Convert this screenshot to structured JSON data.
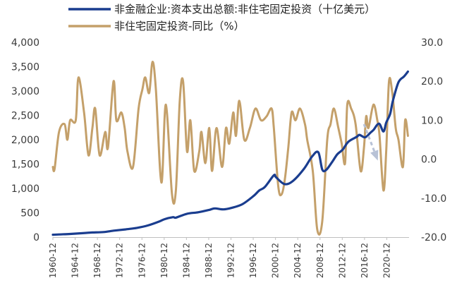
{
  "chart_data": {
    "type": "line",
    "title": "",
    "legend_position": "top-left",
    "grid": false,
    "colors": {
      "capex": "#1a3d8f",
      "yoy": "#c4a06a",
      "arrow": "#b8c2d6"
    },
    "x_ticks": [
      "1960-12",
      "1964-12",
      "1968-12",
      "1972-12",
      "1976-12",
      "1980-12",
      "1984-12",
      "1988-12",
      "1992-12",
      "1996-12",
      "2000-12",
      "2004-12",
      "2008-12",
      "2012-12",
      "2016-12",
      "2020-12"
    ],
    "y_left": {
      "ticks": [
        "0",
        "500",
        "1,000",
        "1,500",
        "2,000",
        "2,500",
        "3,000",
        "3,500",
        "4,000"
      ],
      "lim": [
        0,
        4000
      ]
    },
    "y_right": {
      "ticks": [
        "-20.0",
        "-10.0",
        "0.0",
        "10.0",
        "20.0",
        "30.0"
      ],
      "lim": [
        -20,
        30
      ]
    },
    "x_range": [
      1960.9,
      2024.9
    ],
    "series": [
      {
        "name": "非金融企业:资本支出总额:非住宅固定投资（十亿美元）",
        "axis": "left",
        "x": [
          1960.9,
          1962,
          1964,
          1966,
          1968,
          1970,
          1972,
          1974,
          1976,
          1978,
          1980,
          1981,
          1982.5,
          1983,
          1985,
          1987,
          1989,
          1990,
          1991.5,
          1993,
          1995,
          1997,
          1998,
          1999,
          2000.6,
          2001,
          2002.5,
          2004,
          2006,
          2007.5,
          2008.6,
          2009.3,
          2010,
          2011,
          2012,
          2013,
          2014,
          2015.5,
          2016,
          2017,
          2018,
          2018.5,
          2019.5,
          2020.3,
          2020.8,
          2021.5,
          2022,
          2023,
          2024,
          2024.7
        ],
        "values": [
          50,
          55,
          65,
          80,
          95,
          105,
          135,
          160,
          190,
          240,
          320,
          370,
          410,
          400,
          480,
          510,
          560,
          590,
          570,
          600,
          680,
          850,
          960,
          1030,
          1270,
          1230,
          1090,
          1150,
          1400,
          1660,
          1740,
          1390,
          1380,
          1530,
          1700,
          1800,
          1960,
          2060,
          2100,
          2050,
          2150,
          2200,
          2330,
          2170,
          2350,
          2530,
          2800,
          3180,
          3300,
          3400
        ]
      },
      {
        "name": "非住宅固定投资-同比（%）",
        "axis": "right",
        "x": [
          1960.9,
          1961.2,
          1962,
          1963,
          1963.5,
          1964,
          1965,
          1965.5,
          1966.5,
          1967.3,
          1968,
          1968.5,
          1969.3,
          1970.3,
          1970.8,
          1971.8,
          1972.3,
          1973.2,
          1973.8,
          1974.3,
          1975.3,
          1976.3,
          1977,
          1977.5,
          1978.2,
          1978.8,
          1979.4,
          1980.4,
          1981.2,
          1982.3,
          1983,
          1983.7,
          1984.3,
          1985,
          1985.6,
          1986.3,
          1987.2,
          1987.6,
          1988.3,
          1989,
          1989.5,
          1990.3,
          1991.3,
          1992,
          1992.6,
          1993.3,
          1993.8,
          1994.4,
          1995.3,
          1996.3,
          1997.3,
          1998.3,
          1999.3,
          2000.2,
          2000.6,
          2001.4,
          2002,
          2002.6,
          2003.2,
          2003.8,
          2004.5,
          2005.3,
          2006.2,
          2006.6,
          2007.6,
          2008.4,
          2009.3,
          2010.2,
          2010.8,
          2011.4,
          2012.2,
          2012.8,
          2013.4,
          2013.8,
          2014.5,
          2015.3,
          2016.2,
          2016.8,
          2017.2,
          2017.6,
          2018.5,
          2019.2,
          2019.6,
          2020.3,
          2020.8,
          2021.3,
          2021.9,
          2022.5,
          2023,
          2023.8,
          2024.2,
          2024.7
        ],
        "values": [
          -2,
          -2.5,
          7,
          9,
          5,
          10,
          10,
          21,
          12,
          1,
          8,
          13,
          1,
          7,
          3,
          20,
          10,
          12,
          8,
          2,
          -2,
          13,
          18,
          21,
          17,
          25,
          18,
          -6,
          14,
          -9,
          -8,
          15,
          20,
          2,
          10,
          -3,
          2,
          7,
          -1,
          8,
          -3,
          8,
          -2,
          8,
          4,
          12,
          6,
          15,
          5,
          8,
          13,
          10,
          11,
          13,
          8,
          -7,
          -9,
          -5,
          3,
          12,
          10,
          13,
          9,
          5,
          -3,
          -18,
          -16,
          5,
          9,
          13,
          8,
          4,
          -1,
          14,
          13,
          9,
          -3,
          3,
          11,
          8,
          14,
          10,
          6,
          -8,
          2,
          20,
          17,
          8,
          5,
          -2,
          10,
          6
        ]
      }
    ]
  }
}
